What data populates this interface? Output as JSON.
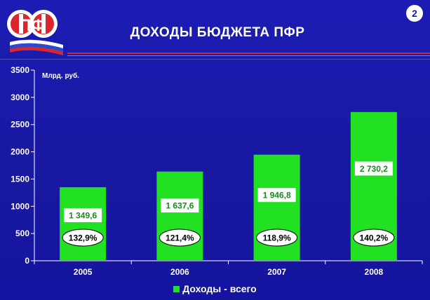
{
  "header": {
    "title": "ДОХОДЫ БЮДЖЕТА ПФР",
    "slide_number": "2"
  },
  "colors": {
    "background": "#1a1aa0",
    "bar": "#22e022",
    "value_label_text": "#1a8a1a",
    "accent_rule": "#c8283a"
  },
  "logo": {
    "icon": "pfr-logo-icon",
    "text": "ПФ"
  },
  "chart_data": {
    "type": "bar",
    "title": "ДОХОДЫ БЮДЖЕТА ПФР",
    "ylabel": "Млрд. руб.",
    "xlabel": "",
    "ylim": [
      0,
      3500
    ],
    "yticks": [
      0,
      500,
      1000,
      1500,
      2000,
      2500,
      3000,
      3500
    ],
    "categories": [
      "2005",
      "2006",
      "2007",
      "2008"
    ],
    "series": [
      {
        "name": "Доходы - всего",
        "values": [
          1349.6,
          1637.6,
          1946.8,
          2730.2
        ],
        "value_labels": [
          "1 349,6",
          "1 637,6",
          "1 946,8",
          "2 730,2"
        ],
        "growth_labels": [
          "132,9%",
          "121,4%",
          "118,9%",
          "140,2%"
        ]
      }
    ],
    "legend": {
      "position": "bottom",
      "entries": [
        "Доходы - всего"
      ]
    },
    "grid": false
  }
}
